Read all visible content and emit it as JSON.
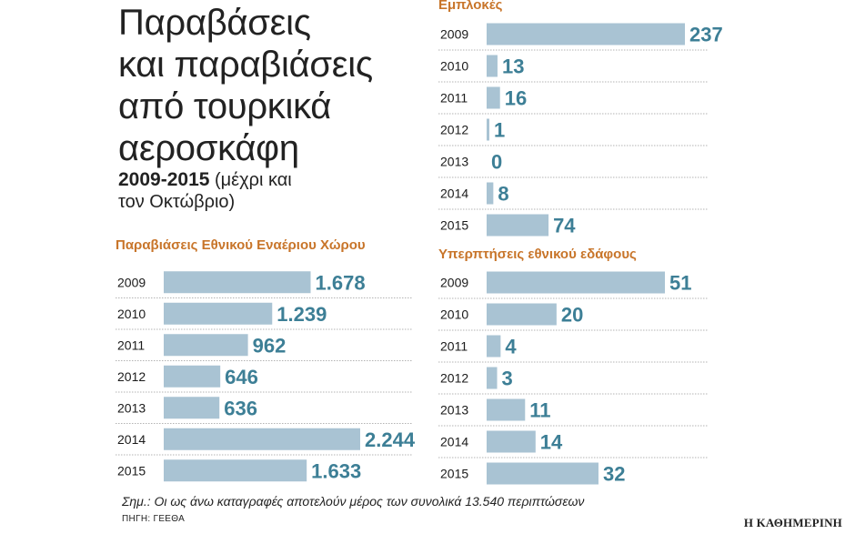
{
  "title_lines": [
    "Παραβάσεις",
    "και παραβιάσεις",
    "από τουρκικά",
    "αεροσκάφη"
  ],
  "years_bold": "2009-2015",
  "years_note_1": "(μέχρι και",
  "years_note_2": "τον Οκτώβριο)",
  "note": "Σημ.: Οι ως άνω καταγραφές αποτελούν μέρος των συνολικά 13.540 περιπτώσεων",
  "source": "ΠΗΓΗ: ΓΕΕΘΑ",
  "brand": "Η ΚΑΘΗΜΕΡΙΝΗ",
  "colors": {
    "bar": "#a9c3d3",
    "value": "#3d7f96",
    "title": "#c8752a",
    "separator": "#9a9a9a"
  },
  "chart_data": [
    {
      "type": "bar",
      "orientation": "horizontal",
      "title": "Εμπλοκές",
      "categories": [
        "2009",
        "2010",
        "2011",
        "2012",
        "2013",
        "2014",
        "2015"
      ],
      "values": [
        237,
        13,
        16,
        1,
        0,
        8,
        74
      ],
      "value_labels": [
        "237",
        "13",
        "16",
        "1",
        "0",
        "8",
        "74"
      ]
    },
    {
      "type": "bar",
      "orientation": "horizontal",
      "title": "Παραβιάσεις Εθνικού Εναέριου Χώρου",
      "categories": [
        "2009",
        "2010",
        "2011",
        "2012",
        "2013",
        "2014",
        "2015"
      ],
      "values": [
        1678,
        1239,
        962,
        646,
        636,
        2244,
        1633
      ],
      "value_labels": [
        "1.678",
        "1.239",
        "962",
        "646",
        "636",
        "2.244",
        "1.633"
      ]
    },
    {
      "type": "bar",
      "orientation": "horizontal",
      "title": "Υπερπτήσεις εθνικού εδάφους",
      "categories": [
        "2009",
        "2010",
        "2011",
        "2012",
        "2013",
        "2014",
        "2015"
      ],
      "values": [
        51,
        20,
        4,
        3,
        11,
        14,
        32
      ],
      "value_labels": [
        "51",
        "20",
        "4",
        "3",
        "11",
        "14",
        "32"
      ]
    }
  ]
}
